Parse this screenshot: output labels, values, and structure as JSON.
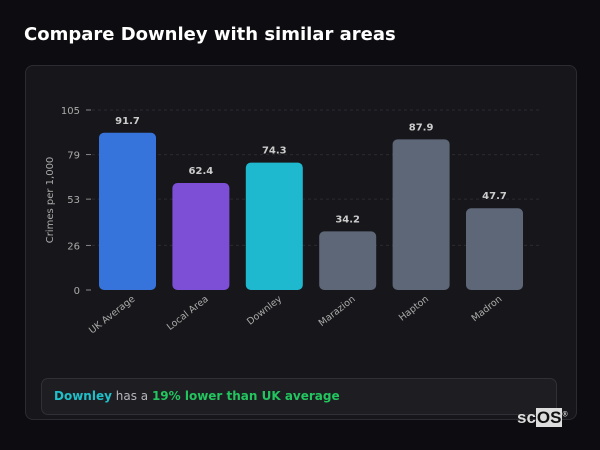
{
  "title": "Compare Downley with similar areas",
  "chart_data": {
    "type": "bar",
    "categories": [
      "UK Average",
      "Local Area",
      "Downley",
      "Marazion",
      "Hapton",
      "Madron"
    ],
    "values": [
      91.7,
      62.4,
      74.3,
      34.2,
      87.9,
      47.7
    ],
    "colors": [
      "#3674db",
      "#7c4fd6",
      "#1fb9cf",
      "#5e6778",
      "#5e6778",
      "#5e6778"
    ],
    "ylabel": "Crimes per 1,000",
    "yticks": [
      0,
      26,
      53,
      79,
      105
    ],
    "ylim": [
      0,
      105
    ],
    "grid": true
  },
  "note": {
    "area": "Downley",
    "middle": " has a ",
    "comparison": "19% lower than UK average"
  },
  "logo": {
    "a": "sc",
    "b": "OS",
    "mark": "®"
  }
}
